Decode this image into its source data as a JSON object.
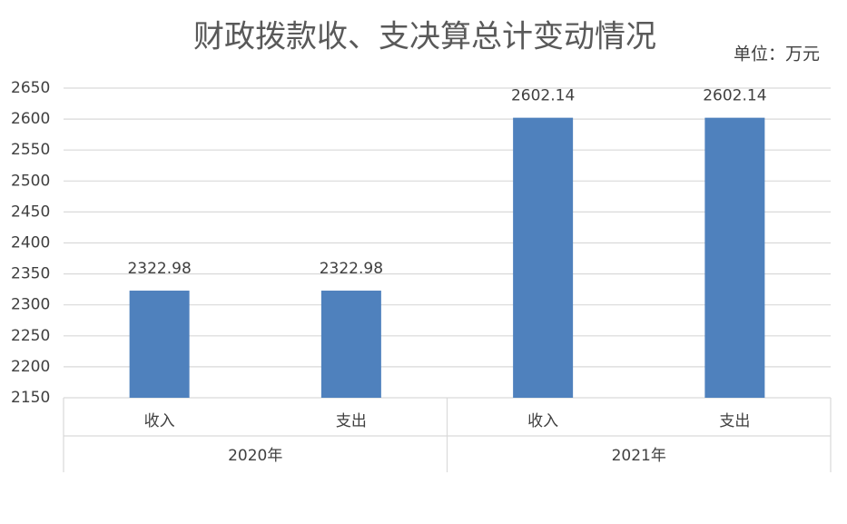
{
  "chart_data": {
    "type": "bar",
    "title": "财政拨款收、支决算总计变动情况",
    "unit": "单位：万元",
    "categories": [
      "收入",
      "支出",
      "收入",
      "支出"
    ],
    "groups": [
      "2020年",
      "2021年"
    ],
    "values": [
      2322.98,
      2322.98,
      2602.14,
      2602.14
    ],
    "color": "#4f81bd",
    "ylim": [
      2150,
      2650
    ],
    "yticks": [
      2150,
      2200,
      2250,
      2300,
      2350,
      2400,
      2450,
      2500,
      2550,
      2600,
      2650
    ],
    "grid": true
  }
}
